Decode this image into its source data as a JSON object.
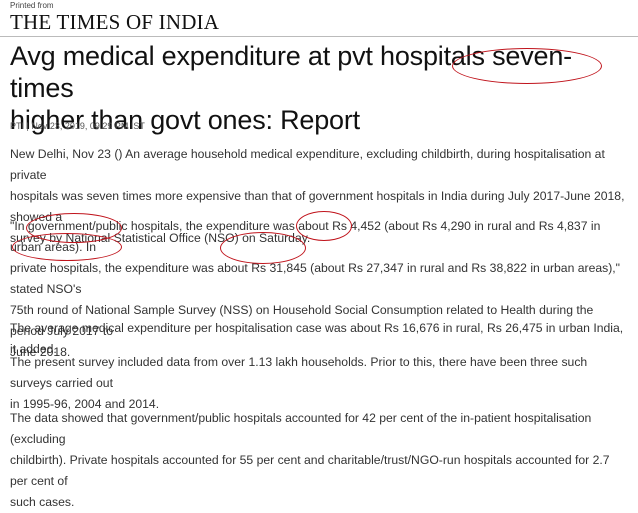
{
  "header": {
    "printed_from": "Printed from",
    "masthead": "THE TIMES OF INDIA"
  },
  "article": {
    "headline_line1": "Avg medical expenditure at pvt hospitals seven-times",
    "headline_line2": "higher than govt ones: Report",
    "byline": "PTI | Nov 23, 2019, 09.29 PM IST",
    "paragraphs": {
      "p1_l1": "New Delhi, Nov 23 () An average household medical expenditure, excluding childbirth, during hospitalisation at private",
      "p1_l2": "hospitals was seven times more expensive than that of government hospitals in India during July 2017-June 2018, showed a",
      "p1_l3": "survey by National Statistical Office (NSO) on Saturday.",
      "p2_l1": "\"In government/public hospitals, the expenditure was about Rs 4,452 (about Rs 4,290 in rural and Rs 4,837 in urban areas). In",
      "p2_l2": "private hospitals, the expenditure was about Rs 31,845 (about Rs 27,347 in rural and Rs 38,822 in urban areas),\" stated NSO's",
      "p2_l3": "75th round of National Sample Survey (NSS) on Household Social Consumption related to Health during the period July 2017 to",
      "p2_l4": "June 2018.",
      "p3_l1": "The average medical expenditure per hospitalisation case was about Rs 16,676 in rural, Rs 26,475 in urban India, it added.",
      "p4_l1": "The present survey included data from over 1.13 lakh households. Prior to this, there have been three such surveys carried out",
      "p4_l2": "in 1995-96, 2004 and 2014.",
      "p5_l1": "The data showed that government/public hospitals accounted for 42 per cent of the in-patient hospitalisation (excluding",
      "p5_l2": "childbirth). Private hospitals accounted for 55 per cent and charitable/trust/NGO-run hospitals accounted for 2.7 per cent of",
      "p5_l3": "such cases."
    }
  },
  "annotations": {
    "color": "#c0141c"
  }
}
